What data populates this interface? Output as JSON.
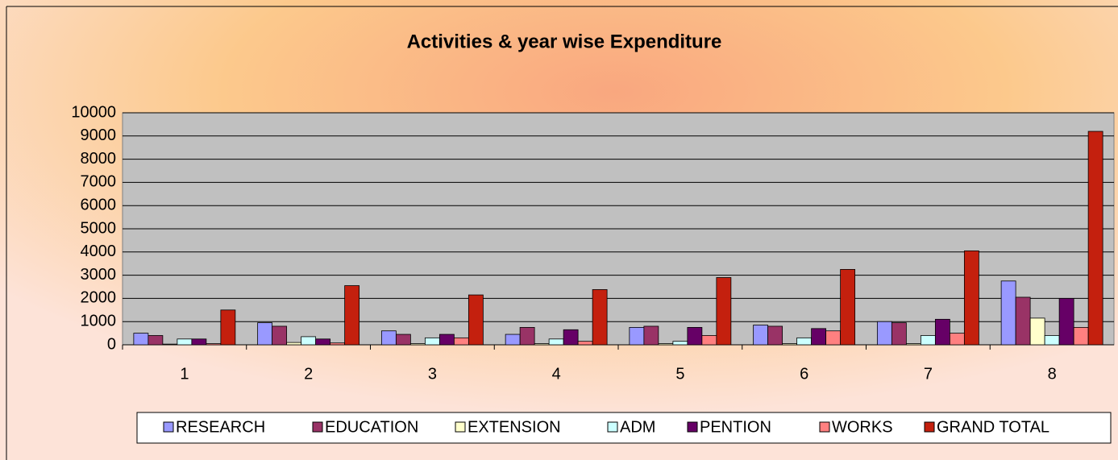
{
  "chart_data": {
    "type": "bar",
    "title": "Activities & year wise Expenditure",
    "categories": [
      "1",
      "2",
      "3",
      "4",
      "5",
      "6",
      "7",
      "8"
    ],
    "series": [
      {
        "name": "RESEARCH",
        "color": "#9999ff",
        "values": [
          500,
          950,
          600,
          450,
          750,
          850,
          1000,
          2750
        ]
      },
      {
        "name": "EDUCATION",
        "color": "#993366",
        "values": [
          400,
          800,
          450,
          750,
          800,
          800,
          950,
          2050
        ]
      },
      {
        "name": "EXTENSION",
        "color": "#ffffcc",
        "values": [
          30,
          100,
          50,
          50,
          50,
          50,
          50,
          1150
        ]
      },
      {
        "name": "ADM",
        "color": "#ccffff",
        "values": [
          250,
          350,
          300,
          250,
          150,
          300,
          400,
          400
        ]
      },
      {
        "name": "PENTION",
        "color": "#660066",
        "values": [
          250,
          250,
          450,
          650,
          750,
          700,
          1100,
          2000
        ]
      },
      {
        "name": "WORKS",
        "color": "#ff8080",
        "values": [
          50,
          80,
          300,
          150,
          400,
          600,
          500,
          750
        ]
      },
      {
        "name": "GRAND TOTAL",
        "color": "#c4200e",
        "values": [
          1500,
          2550,
          2150,
          2380,
          2900,
          3250,
          4050,
          9200
        ]
      }
    ],
    "ylim": [
      0,
      10000
    ],
    "yticks": [
      0,
      1000,
      2000,
      3000,
      4000,
      5000,
      6000,
      7000,
      8000,
      9000,
      10000
    ],
    "grid": true,
    "legend": "bottom"
  }
}
